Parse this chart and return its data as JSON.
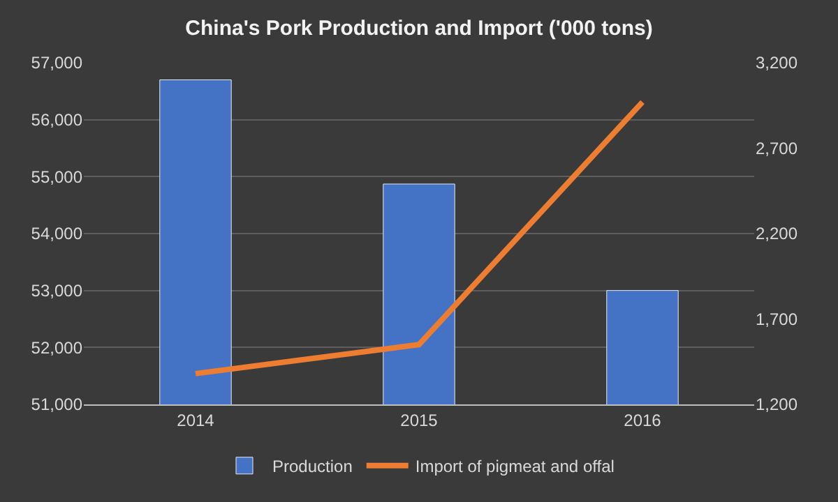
{
  "chart_data": {
    "type": "bar",
    "title": "China's Pork Production and Import ('000 tons)",
    "categories": [
      "2014",
      "2015",
      "2016"
    ],
    "series": [
      {
        "name": "Production",
        "color": "#4472c4",
        "values": [
          56700,
          54870,
          53000
        ]
      },
      {
        "name": "Import of pigmeat and offal",
        "type": "line",
        "axis": "y2",
        "color": "#ed7d31",
        "values": [
          1380,
          1550,
          2970
        ]
      }
    ],
    "ylim": [
      51000,
      57000
    ],
    "yticks": [
      {
        "value": 51000,
        "label": "51,000"
      },
      {
        "value": 52000,
        "label": "52,000"
      },
      {
        "value": 53000,
        "label": "53,000"
      },
      {
        "value": 54000,
        "label": "54,000"
      },
      {
        "value": 55000,
        "label": "55,000"
      },
      {
        "value": 56000,
        "label": "56,000"
      },
      {
        "value": 57000,
        "label": "57,000"
      }
    ],
    "y2lim": [
      1200,
      3200
    ],
    "y2ticks": [
      {
        "value": 1200,
        "label": "1,200"
      },
      {
        "value": 1700,
        "label": "1,700"
      },
      {
        "value": 2200,
        "label": "2,200"
      },
      {
        "value": 2700,
        "label": "2,700"
      },
      {
        "value": 3200,
        "label": "3,200"
      }
    ],
    "grid": "y",
    "legend": "bottom",
    "marker": "none",
    "line_style": "solid"
  }
}
